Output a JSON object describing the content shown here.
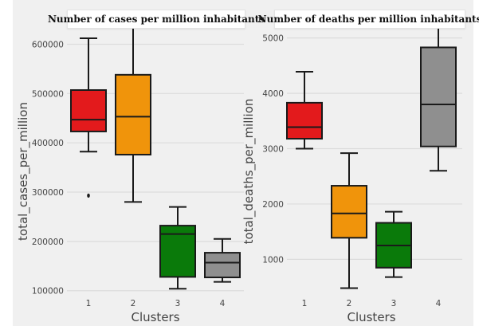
{
  "chart_data": [
    {
      "type": "box",
      "title": "Number of cases per million inhabitants",
      "xlabel": "Clusters",
      "ylabel": "total_cases_per_million",
      "categories": [
        "1",
        "2",
        "3",
        "4"
      ],
      "ylim": [
        85000,
        680000
      ],
      "yticks": [
        100000,
        200000,
        300000,
        400000,
        500000,
        600000
      ],
      "ytick_labels": [
        "100000",
        "200000",
        "300000",
        "400000",
        "500000",
        "600000"
      ],
      "grid": true,
      "boxes": [
        {
          "category": "1",
          "whisker_low": 382000,
          "q1": 423000,
          "median": 447000,
          "q3": 507000,
          "whisker_high": 612000,
          "outliers": [
            293000
          ],
          "color": "#e31a1c"
        },
        {
          "category": "2",
          "whisker_low": 280000,
          "q1": 376000,
          "median": 453000,
          "q3": 538000,
          "whisker_high": 655000,
          "outliers": [],
          "color": "#f0940b"
        },
        {
          "category": "3",
          "whisker_low": 104000,
          "q1": 128000,
          "median": 215000,
          "q3": 232000,
          "whisker_high": 270000,
          "outliers": [],
          "color": "#0a7a0a"
        },
        {
          "category": "4",
          "whisker_low": 118000,
          "q1": 127000,
          "median": 157000,
          "q3": 177000,
          "whisker_high": 205000,
          "outliers": [],
          "color": "#8f8f8f"
        }
      ]
    },
    {
      "type": "box",
      "title": "Number of deaths per million inhabitants",
      "xlabel": "Clusters",
      "ylabel": "total_deaths_per_million",
      "categories": [
        "1",
        "2",
        "3",
        "4"
      ],
      "ylim": [
        300,
        5600
      ],
      "yticks": [
        1000,
        2000,
        3000,
        4000,
        5000
      ],
      "ytick_labels": [
        "1000",
        "2000",
        "3000",
        "4000",
        "5000"
      ],
      "grid": true,
      "boxes": [
        {
          "category": "1",
          "whisker_low": 3000,
          "q1": 3180,
          "median": 3390,
          "q3": 3830,
          "whisker_high": 4390,
          "outliers": [],
          "color": "#e31a1c"
        },
        {
          "category": "2",
          "whisker_low": 480,
          "q1": 1390,
          "median": 1830,
          "q3": 2330,
          "whisker_high": 2920,
          "outliers": [],
          "color": "#f0940b"
        },
        {
          "category": "3",
          "whisker_low": 680,
          "q1": 850,
          "median": 1250,
          "q3": 1660,
          "whisker_high": 1860,
          "outliers": [],
          "color": "#0a7a0a"
        },
        {
          "category": "4",
          "whisker_low": 2600,
          "q1": 3040,
          "median": 3800,
          "q3": 4830,
          "whisker_high": 5420,
          "outliers": [],
          "color": "#8f8f8f"
        }
      ]
    }
  ],
  "colors": {
    "panel_bg": "#f0f0f0",
    "grid": "#dcdcdc",
    "line": "#1a1a1a",
    "text": "#444444"
  }
}
